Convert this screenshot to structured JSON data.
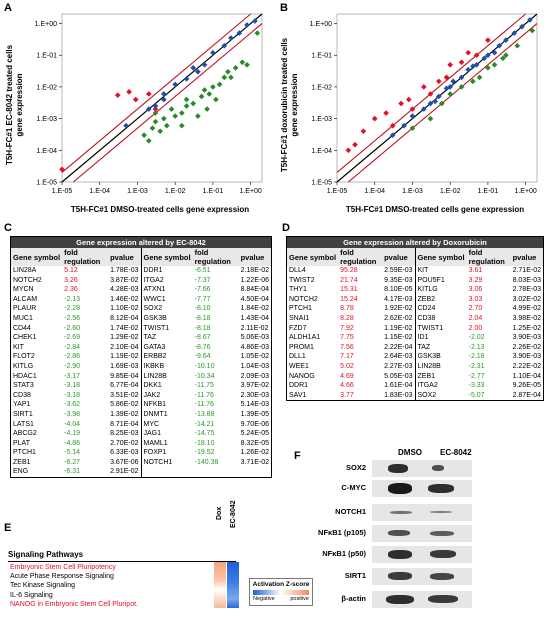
{
  "panels": {
    "A": "A",
    "B": "B",
    "C": "C",
    "D": "D",
    "E": "E",
    "F": "F"
  },
  "scatter_A": {
    "ylabel_line1": "T5H-FC#1 EC-8042 treated cells",
    "ylabel_line2": "gene expression",
    "xlabel": "T5H-FC#1 DMSO-treated cells gene expression",
    "y_ticks": [
      "1.E+00",
      "1.E-01",
      "1.E-02",
      "1.E-03",
      "1.E-04",
      "1.E-05"
    ],
    "x_ticks": [
      "1.E-05",
      "1.E-04",
      "1.E-03",
      "1.E-02",
      "1.E-01",
      "1.E+00"
    ]
  },
  "scatter_B": {
    "ylabel_line1": "T5H-FC#1 doxorubicin treated cells",
    "ylabel_line2": "gene expression",
    "xlabel": "T5H-FC#1 DMSO-treated cells gene expression",
    "y_ticks": [
      "1.E+00",
      "1.E-01",
      "1.E-02",
      "1.E-03",
      "1.E-04",
      "1.E-05"
    ],
    "x_ticks": [
      "1.E-05",
      "1.E-04",
      "1.E-03",
      "1.E-02",
      "1.E-01",
      "1.E+00"
    ]
  },
  "chart_data": [
    {
      "type": "scatter",
      "panel": "A",
      "xscale": "log",
      "yscale": "log",
      "xlim": [
        1e-05,
        2
      ],
      "ylim": [
        1e-05,
        2
      ],
      "series": [
        {
          "color": "#e4102a",
          "points": [
            [
              1e-05,
              2.5e-05
            ],
            [
              0.0003,
              0.0055
            ],
            [
              0.0006,
              0.007
            ],
            [
              0.0009,
              0.004
            ],
            [
              0.002,
              0.006
            ],
            [
              0.003,
              0.002
            ]
          ]
        },
        {
          "color": "#1f4fa8",
          "points": [
            [
              0.0005,
              0.0006
            ],
            [
              0.002,
              0.002
            ],
            [
              0.003,
              0.0025
            ],
            [
              0.005,
              0.006
            ],
            [
              0.01,
              0.012
            ],
            [
              0.02,
              0.018
            ],
            [
              0.03,
              0.04
            ],
            [
              0.06,
              0.05
            ],
            [
              0.1,
              0.12
            ],
            [
              0.2,
              0.2
            ],
            [
              0.3,
              0.35
            ],
            [
              0.5,
              0.5
            ],
            [
              0.8,
              0.9
            ],
            [
              1.3,
              1.2
            ],
            [
              0.005,
              0.004
            ],
            [
              0.04,
              0.03
            ]
          ]
        },
        {
          "color": "#2a8a2a",
          "points": [
            [
              0.0015,
              0.0003
            ],
            [
              0.0025,
              0.0005
            ],
            [
              0.003,
              0.0008
            ],
            [
              0.002,
              0.0002
            ],
            [
              0.004,
              0.0004
            ],
            [
              0.006,
              0.0006
            ],
            [
              0.01,
              0.0012
            ],
            [
              0.008,
              0.002
            ],
            [
              0.015,
              0.0015
            ],
            [
              0.02,
              0.0025
            ],
            [
              0.03,
              0.003
            ],
            [
              0.02,
              0.004
            ],
            [
              0.05,
              0.005
            ],
            [
              0.06,
              0.008
            ],
            [
              0.08,
              0.006
            ],
            [
              0.1,
              0.01
            ],
            [
              0.12,
              0.004
            ],
            [
              0.15,
              0.012
            ],
            [
              0.2,
              0.02
            ],
            [
              0.3,
              0.02
            ],
            [
              0.25,
              0.03
            ],
            [
              0.4,
              0.04
            ],
            [
              0.6,
              0.06
            ],
            [
              0.8,
              0.05
            ],
            [
              1.5,
              0.5
            ],
            [
              0.003,
              0.0015
            ],
            [
              0.005,
              0.001
            ],
            [
              0.04,
              0.0012
            ],
            [
              0.015,
              0.0006
            ],
            [
              0.07,
              0.002
            ]
          ]
        }
      ]
    },
    {
      "type": "scatter",
      "panel": "B",
      "xscale": "log",
      "yscale": "log",
      "xlim": [
        1e-05,
        2
      ],
      "ylim": [
        1e-05,
        2
      ],
      "series": [
        {
          "color": "#e4102a",
          "points": [
            [
              2e-05,
              0.0001
            ],
            [
              3e-05,
              0.00015
            ],
            [
              5e-05,
              0.0004
            ],
            [
              0.0001,
              0.001
            ],
            [
              0.0002,
              0.0015
            ],
            [
              0.0003,
              0.0006
            ],
            [
              0.0005,
              0.003
            ],
            [
              0.0008,
              0.004
            ],
            [
              0.001,
              0.002
            ],
            [
              0.002,
              0.01
            ],
            [
              0.003,
              0.006
            ],
            [
              0.005,
              0.015
            ],
            [
              0.008,
              0.02
            ],
            [
              0.01,
              0.05
            ],
            [
              0.02,
              0.06
            ],
            [
              0.03,
              0.12
            ],
            [
              0.05,
              0.1
            ],
            [
              0.1,
              0.3
            ]
          ]
        },
        {
          "color": "#1f4fa8",
          "points": [
            [
              0.0003,
              0.0003
            ],
            [
              0.0006,
              0.0006
            ],
            [
              0.001,
              0.0012
            ],
            [
              0.002,
              0.002
            ],
            [
              0.003,
              0.003
            ],
            [
              0.005,
              0.005
            ],
            [
              0.008,
              0.009
            ],
            [
              0.01,
              0.01
            ],
            [
              0.02,
              0.02
            ],
            [
              0.03,
              0.035
            ],
            [
              0.05,
              0.05
            ],
            [
              0.08,
              0.08
            ],
            [
              0.1,
              0.1
            ],
            [
              0.15,
              0.12
            ],
            [
              0.2,
              0.2
            ],
            [
              0.3,
              0.3
            ],
            [
              0.5,
              0.5
            ],
            [
              0.8,
              0.8
            ],
            [
              1.3,
              1.3
            ],
            [
              0.004,
              0.0035
            ],
            [
              0.04,
              0.045
            ],
            [
              0.012,
              0.015
            ]
          ]
        },
        {
          "color": "#2a8a2a",
          "points": [
            [
              0.001,
              0.0005
            ],
            [
              0.003,
              0.001
            ],
            [
              0.006,
              0.003
            ],
            [
              0.01,
              0.006
            ],
            [
              0.02,
              0.01
            ],
            [
              0.04,
              0.015
            ],
            [
              0.06,
              0.02
            ],
            [
              0.1,
              0.04
            ],
            [
              0.15,
              0.05
            ],
            [
              0.25,
              0.08
            ],
            [
              0.3,
              0.1
            ],
            [
              0.6,
              0.2
            ],
            [
              1.5,
              0.6
            ]
          ]
        }
      ]
    }
  ],
  "table_C": {
    "title": "Gene expression altered by EC-8042",
    "headers": [
      "Gene symbol",
      "fold regulation",
      "pvalue",
      "Gene symbol",
      "fold regulation",
      "pvalue"
    ],
    "rows": [
      [
        "LIN28A",
        "5.12",
        "1.78E-03",
        "DDR1",
        "-6.51",
        "2.18E-02"
      ],
      [
        "NOTCH2",
        "3.26",
        "3.87E-02",
        "ITGA2",
        "-7.37",
        "1.22E-06"
      ],
      [
        "MYCN",
        "2.36",
        "4.28E-03",
        "ATXN1",
        "-7.66",
        "8.84E-04"
      ],
      [
        "ALCAM",
        "-2.13",
        "1.46E-02",
        "WWC1",
        "-7.77",
        "4.50E-04"
      ],
      [
        "PLAUR",
        "-2.28",
        "1.10E-02",
        "SOX2",
        "-8.10",
        "1.84E-02"
      ],
      [
        "MUC1",
        "-2.56",
        "8.12E-04",
        "GSK3B",
        "-8.18",
        "1.43E-04"
      ],
      [
        "CD44",
        "-2.60",
        "1.74E-02",
        "TWIST1",
        "-8.18",
        "2.11E-02"
      ],
      [
        "CHEK1",
        "-2.69",
        "1.29E-02",
        "TAZ",
        "-8.67",
        "5.06E-03"
      ],
      [
        "KIT",
        "-2.84",
        "2.10E-04",
        "GATA3",
        "-8.76",
        "4.86E-03"
      ],
      [
        "FLOT2",
        "-2.86",
        "1.19E-02",
        "ERBB2",
        "-9.64",
        "1.05E-02"
      ],
      [
        "KITLG",
        "-2.90",
        "1.69E-03",
        "IKBKB",
        "-10.10",
        "1.04E-03"
      ],
      [
        "HDAC1",
        "-3.17",
        "9.85E-04",
        "LIN28B",
        "-10.34",
        "2.09E-03"
      ],
      [
        "STAT3",
        "-3.18",
        "6.77E-04",
        "DKK1",
        "-11.75",
        "3.97E-02"
      ],
      [
        "CD38",
        "-3.18",
        "3.51E-02",
        "JAK2",
        "-11.76",
        "2.30E-03"
      ],
      [
        "YAP1",
        "-3.62",
        "5.86E-02",
        "NFKB1",
        "-11.76",
        "5.14E-03"
      ],
      [
        "SIRT1",
        "-3.98",
        "1.39E-02",
        "DNMT1",
        "-13.88",
        "1.39E-05"
      ],
      [
        "LATS1",
        "-4.04",
        "8.71E-04",
        "MYC",
        "-14.21",
        "9.70E-06"
      ],
      [
        "ABCG2",
        "-4.19",
        "8.25E-03",
        "JAG1",
        "-14.75",
        "5.24E-05"
      ],
      [
        "PLAT",
        "-4.86",
        "2.70E-02",
        "MAML1",
        "-18.10",
        "8.32E-05"
      ],
      [
        "PTCH1",
        "-5.14",
        "6.33E-03",
        "FOXP1",
        "-19.52",
        "1.26E-02"
      ],
      [
        "ZEB1",
        "-6.27",
        "3.67E-06",
        "NOTCH1",
        "-140.38",
        "3.71E-02"
      ],
      [
        "ENG",
        "-6.31",
        "2.91E-02",
        "",
        "",
        ""
      ]
    ]
  },
  "table_D": {
    "title": "Gene expression altered by Doxorubicin",
    "headers": [
      "Gene symbol",
      "fold regulation",
      "pvalue",
      "Gene symbol",
      "fold regulation",
      "pvalue"
    ],
    "rows": [
      [
        "DLL4",
        "95.28",
        "2.59E-03",
        "KIT",
        "3.61",
        "2.71E-02"
      ],
      [
        "TWIST2",
        "21.74",
        "9.35E-03",
        "POU5F1",
        "3.29",
        "8.03E-03"
      ],
      [
        "THY1",
        "15.31",
        "8.10E-05",
        "KITLG",
        "3.06",
        "2.78E-03"
      ],
      [
        "NOTCH2",
        "15.24",
        "4.17E-03",
        "ZEB2",
        "3.03",
        "3.02E-02"
      ],
      [
        "PTCH1",
        "8.78",
        "1.92E-02",
        "CD24",
        "2.70",
        "4.99E-02"
      ],
      [
        "SNAI1",
        "8.28",
        "2.62E-02",
        "CD38",
        "2.04",
        "3.98E-02"
      ],
      [
        "FZD7",
        "7.92",
        "1.19E-02",
        "TWIST1",
        "2.00",
        "1.25E-02"
      ],
      [
        "ALDH1A1",
        "7.75",
        "1.15E-02",
        "ID1",
        "-2.02",
        "3.90E-03"
      ],
      [
        "PROM1",
        "7.56",
        "2.22E-04",
        "TAZ",
        "-2.13",
        "2.26E-02"
      ],
      [
        "DLL1",
        "7.17",
        "2.64E-03",
        "GSK3B",
        "-2.18",
        "3.90E-03"
      ],
      [
        "WEE1",
        "5.02",
        "2.27E-03",
        "LIN28B",
        "-2.31",
        "2.22E-02"
      ],
      [
        "NANOG",
        "4.69",
        "5.05E-03",
        "ZEB1",
        "-2.77",
        "1.10E-04"
      ],
      [
        "DDR1",
        "4.66",
        "1.61E-04",
        "ITGA2",
        "-3.33",
        "9.26E-05"
      ],
      [
        "SAV1",
        "3.77",
        "1.83E-03",
        "SOX2",
        "-5.07",
        "2.87E-04"
      ]
    ]
  },
  "pathways": {
    "title": "Signaling Pathways",
    "col_dox": "Dox",
    "col_ec": "EC-8042",
    "items": [
      {
        "label": "Embryonic Stem Cell Pluripotency",
        "highlight": true
      },
      {
        "label": "Acute Phase Response Signaling",
        "highlight": false
      },
      {
        "label": "Tec Kinase Signaling",
        "highlight": false
      },
      {
        "label": "IL-6 Signaling",
        "highlight": false
      },
      {
        "label": "NANOG in Embryonic Stem Cell Pluripot.",
        "highlight": true
      }
    ],
    "legend_title": "Activation Z-score",
    "legend_neg": "Negative",
    "legend_pos": "positive"
  },
  "blot": {
    "col_dmso": "DMSO",
    "col_ec": "EC-8042",
    "rows": [
      "SOX2",
      "C-MYC",
      "NOTCH1",
      "NFκB1 (p105)",
      "NFκB1 (p50)",
      "SIRT1",
      "β-actin"
    ]
  }
}
